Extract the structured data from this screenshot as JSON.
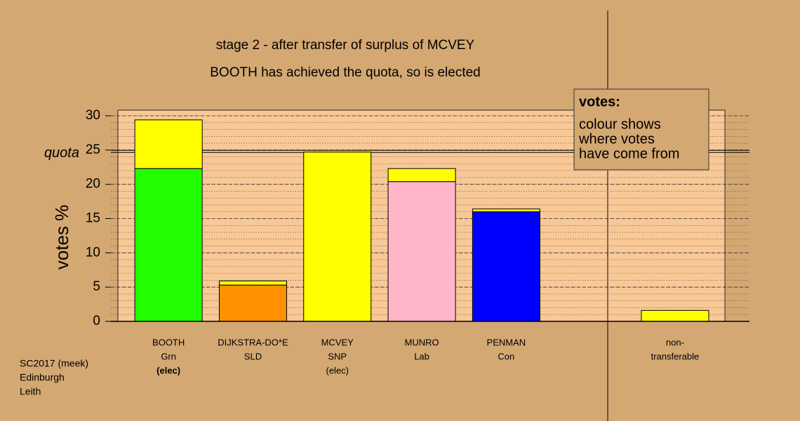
{
  "chart_data": {
    "type": "stacked_bar",
    "title": "stage 2 - after transfer of surplus of MCVEY",
    "subtitle": "BOOTH has achieved the quota, so is elected",
    "y_label": "votes %",
    "categories": [
      [
        "BOOTH",
        "Grn",
        "(elec)"
      ],
      [
        "DIJKSTRA-DO*E",
        "SLD"
      ],
      [
        "MCVEY",
        "SNP",
        "(elec)"
      ],
      [
        "MUNRO",
        "Lab"
      ],
      [
        "PENMAN",
        "Con"
      ],
      null,
      [
        "non-",
        "transferable"
      ]
    ],
    "series": [
      {
        "colors": [
          "#22ff00",
          "#ff9100",
          "#ffff00",
          "#ffb6c8",
          "#0000ff",
          null,
          "#ffff00"
        ],
        "values": [
          22.3,
          5.3,
          24.7,
          20.4,
          16.0,
          null,
          0
        ]
      },
      {
        "color": "#ffff00",
        "values": [
          7.1,
          0.6,
          0,
          1.9,
          0.4,
          null,
          1.6
        ]
      }
    ],
    "ylim": [
      0,
      30
    ],
    "yticks": [
      0,
      5,
      10,
      15,
      20,
      25,
      30
    ],
    "yminor": 1,
    "grid": true,
    "quota": {
      "value": 24.8,
      "label": "quota"
    },
    "note": {
      "title": "votes:",
      "lines": [
        "colour shows",
        "where votes",
        "have come from"
      ]
    },
    "footer": [
      "SC2017 (meek)",
      "Edinburgh",
      "Leith"
    ]
  }
}
